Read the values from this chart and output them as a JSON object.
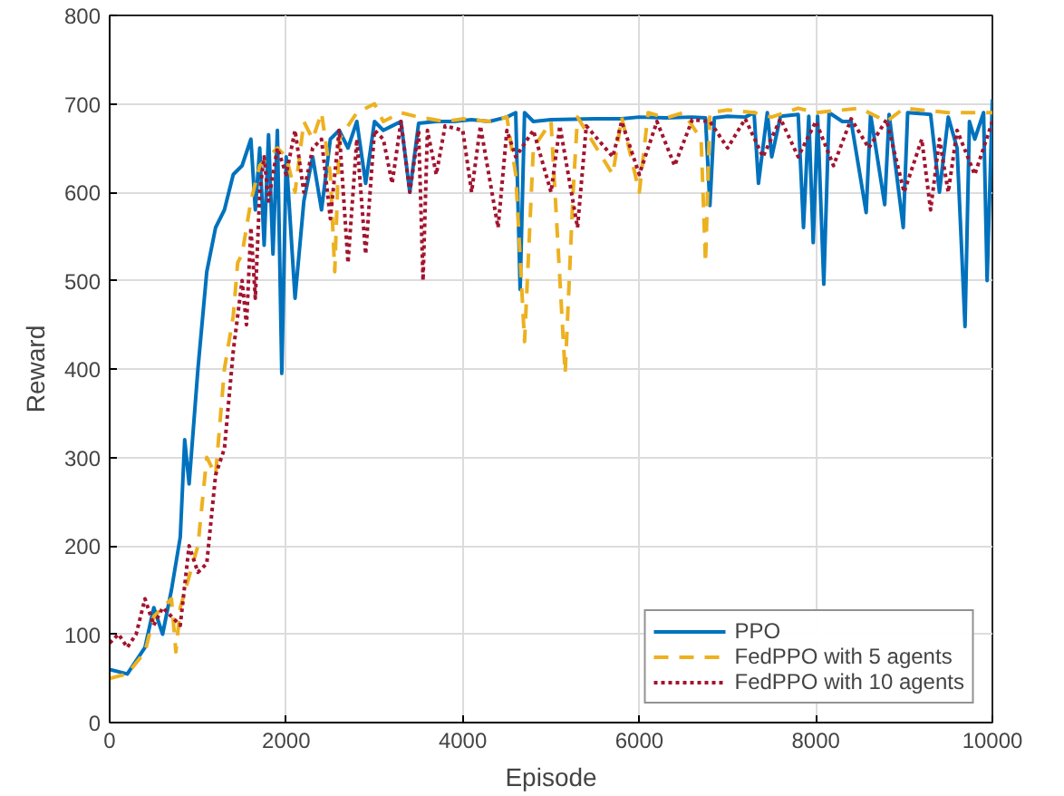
{
  "chart_data": {
    "type": "line",
    "xlabel": "Episode",
    "ylabel": "Reward",
    "xlim": [
      0,
      10000
    ],
    "ylim": [
      0,
      800
    ],
    "xticks": [
      0,
      2000,
      4000,
      6000,
      8000,
      10000
    ],
    "yticks": [
      0,
      100,
      200,
      300,
      400,
      500,
      600,
      700,
      800
    ],
    "grid": true,
    "legend": "bottom right",
    "series": [
      {
        "name": "PPO",
        "color": "#0072bd",
        "line_style": "solid",
        "x": [
          0,
          200,
          400,
          500,
          600,
          700,
          800,
          850,
          900,
          1000,
          1100,
          1200,
          1300,
          1400,
          1500,
          1600,
          1650,
          1700,
          1750,
          1800,
          1850,
          1900,
          1950,
          2000,
          2100,
          2200,
          2300,
          2400,
          2500,
          2600,
          2700,
          2800,
          2900,
          3000,
          3100,
          3200,
          3300,
          3400,
          3500,
          3700,
          3900,
          4100,
          4300,
          4500,
          4600,
          4650,
          4700,
          4800,
          5000,
          5500,
          5800,
          6000,
          6300,
          6600,
          6750,
          6800,
          6850,
          7000,
          7200,
          7300,
          7350,
          7450,
          7500,
          7600,
          7800,
          7860,
          7920,
          7970,
          8020,
          8090,
          8150,
          8300,
          8400,
          8570,
          8620,
          8780,
          8830,
          8990,
          9040,
          9300,
          9400,
          9500,
          9600,
          9690,
          9740,
          9800,
          9900,
          9940,
          10000
        ],
        "values": [
          60,
          55,
          85,
          130,
          100,
          150,
          210,
          320,
          270,
          400,
          510,
          560,
          580,
          620,
          630,
          660,
          580,
          650,
          540,
          665,
          530,
          670,
          395,
          640,
          480,
          590,
          640,
          580,
          660,
          670,
          650,
          680,
          610,
          680,
          670,
          675,
          680,
          600,
          678,
          680,
          680,
          682,
          680,
          685,
          690,
          490,
          690,
          680,
          682,
          683,
          683,
          685,
          684,
          685,
          684,
          585,
          684,
          686,
          685,
          690,
          610,
          690,
          640,
          686,
          688,
          560,
          686,
          543,
          686,
          496,
          690,
          680,
          680,
          577,
          688,
          586,
          688,
          560,
          690,
          688,
          600,
          685,
          650,
          448,
          680,
          660,
          690,
          500,
          705
        ]
      },
      {
        "name": "FedPPO with 5 agents",
        "color": "#edb120",
        "line_style": "dashed",
        "x": [
          0,
          200,
          400,
          500,
          700,
          750,
          800,
          1000,
          1100,
          1200,
          1300,
          1400,
          1450,
          1500,
          1600,
          1700,
          1800,
          1900,
          2000,
          2100,
          2200,
          2300,
          2400,
          2500,
          2550,
          2600,
          2800,
          3000,
          3100,
          3300,
          3500,
          3800,
          4000,
          4300,
          4500,
          4600,
          4700,
          4800,
          5000,
          5160,
          5250,
          5300,
          5700,
          5800,
          6000,
          6100,
          6300,
          6500,
          6700,
          6750,
          6800,
          7000,
          7300,
          7500,
          7800,
          8000,
          8500,
          8800,
          9000,
          9500,
          10000
        ],
        "values": [
          50,
          55,
          80,
          120,
          140,
          80,
          130,
          200,
          300,
          280,
          400,
          460,
          520,
          530,
          590,
          630,
          640,
          650,
          640,
          600,
          680,
          660,
          690,
          620,
          510,
          660,
          690,
          700,
          680,
          690,
          685,
          680,
          683,
          680,
          685,
          620,
          431,
          650,
          680,
          395,
          600,
          685,
          620,
          685,
          600,
          690,
          684,
          690,
          660,
          520,
          690,
          693,
          690,
          685,
          695,
          690,
          695,
          680,
          695,
          690,
          690
        ]
      },
      {
        "name": "FedPPO with 10 agents",
        "color": "#a2142f",
        "line_style": "dotted",
        "x": [
          0,
          100,
          200,
          300,
          400,
          500,
          600,
          700,
          800,
          900,
          1000,
          1100,
          1200,
          1300,
          1400,
          1500,
          1550,
          1600,
          1650,
          1700,
          1750,
          1800,
          1900,
          2000,
          2100,
          2200,
          2300,
          2400,
          2500,
          2600,
          2700,
          2800,
          2900,
          3000,
          3100,
          3200,
          3300,
          3400,
          3500,
          3550,
          3600,
          3700,
          3800,
          4000,
          4100,
          4200,
          4400,
          4500,
          4600,
          4800,
          5000,
          5100,
          5300,
          5400,
          5700,
          5800,
          6000,
          6200,
          6400,
          6600,
          6800,
          7000,
          7200,
          7400,
          7600,
          7800,
          8000,
          8200,
          8400,
          8600,
          8800,
          9000,
          9200,
          9300,
          9400,
          9500,
          9600,
          9800,
          10000
        ],
        "values": [
          90,
          100,
          85,
          100,
          140,
          110,
          130,
          120,
          110,
          200,
          170,
          180,
          280,
          310,
          420,
          500,
          450,
          560,
          480,
          600,
          640,
          590,
          650,
          620,
          670,
          600,
          650,
          660,
          570,
          670,
          520,
          660,
          530,
          670,
          660,
          610,
          680,
          600,
          670,
          500,
          670,
          620,
          675,
          670,
          600,
          675,
          560,
          670,
          640,
          670,
          600,
          675,
          560,
          675,
          640,
          680,
          620,
          680,
          630,
          682,
          680,
          650,
          683,
          640,
          683,
          640,
          680,
          630,
          683,
          650,
          682,
          600,
          660,
          580,
          660,
          600,
          670,
          620,
          680
        ]
      }
    ]
  }
}
